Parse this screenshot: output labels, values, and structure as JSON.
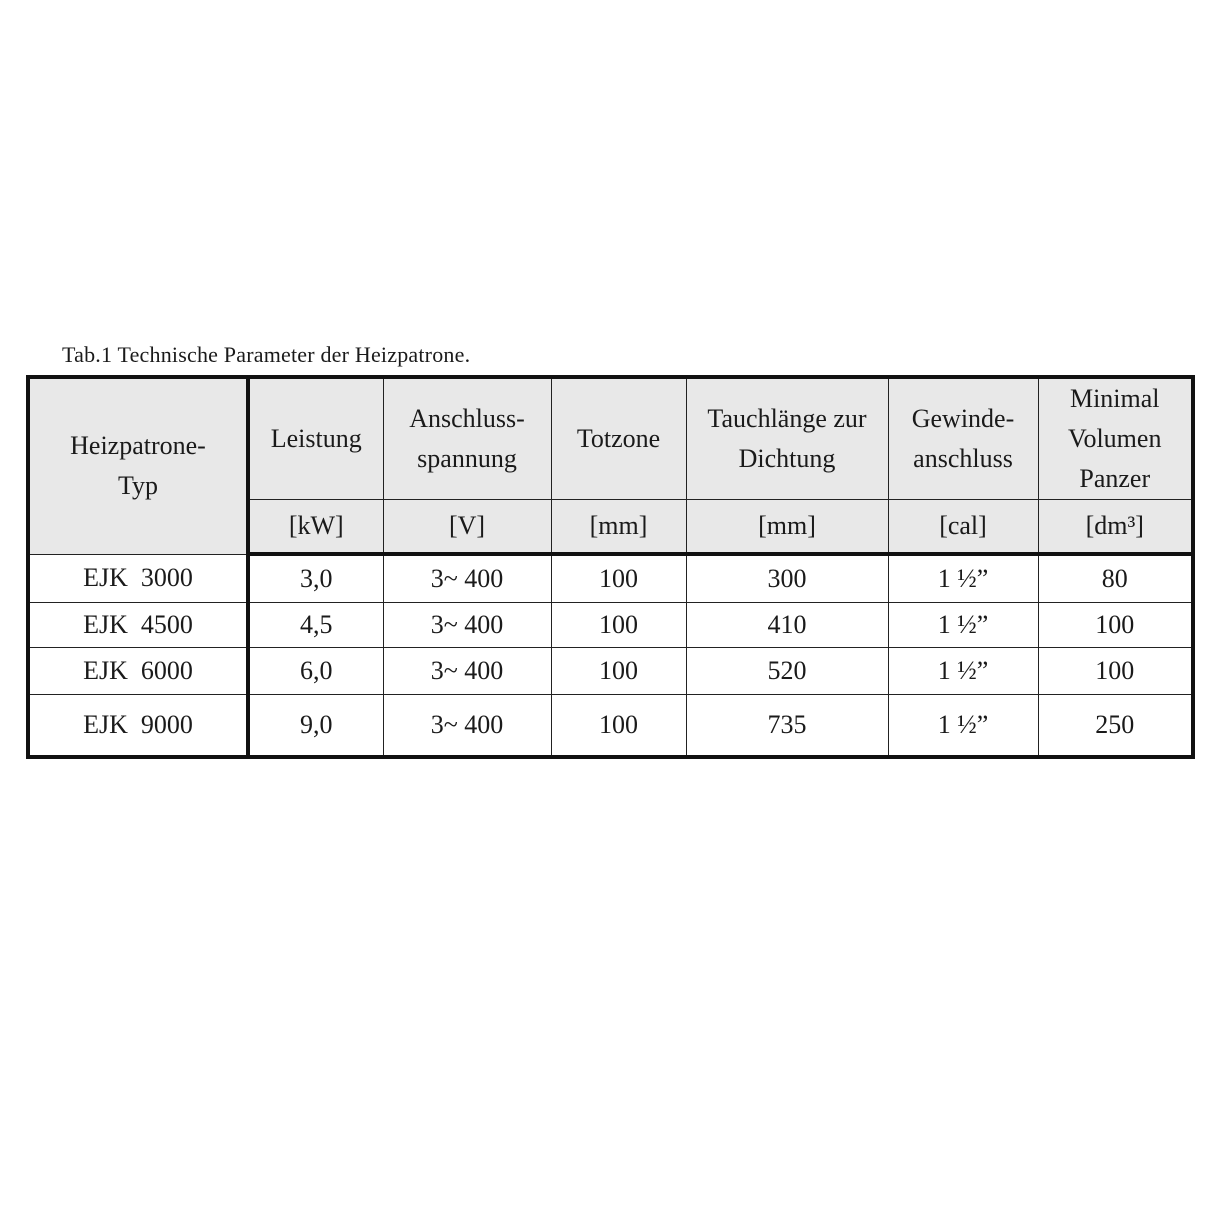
{
  "caption": "Tab.1 Technische Parameter der Heizpatrone.",
  "headers": [
    {
      "label": "Heizpatrone-\nTyp",
      "unit": ""
    },
    {
      "label": "Leistung",
      "unit": "[kW]"
    },
    {
      "label": "Anschluss-\nspannung",
      "unit": "[V]"
    },
    {
      "label": "Totzone",
      "unit": "[mm]"
    },
    {
      "label": "Tauchlänge zur\nDichtung",
      "unit": "[mm]"
    },
    {
      "label": "Gewinde-\nanschluss",
      "unit": "[cal]"
    },
    {
      "label": "Minimal\nVolumen\nPanzer",
      "unit": "[dm³]"
    }
  ],
  "rows": [
    [
      "EJK  3000",
      "3,0",
      "3~ 400",
      "100",
      "300",
      "1 ½”",
      "80"
    ],
    [
      "EJK  4500",
      "4,5",
      "3~ 400",
      "100",
      "410",
      "1 ½”",
      "100"
    ],
    [
      "EJK  6000",
      "6,0",
      "3~ 400",
      "100",
      "520",
      "1 ½”",
      "100"
    ],
    [
      "EJK  9000",
      "9,0",
      "3~ 400",
      "100",
      "735",
      "1 ½”",
      "250"
    ]
  ]
}
